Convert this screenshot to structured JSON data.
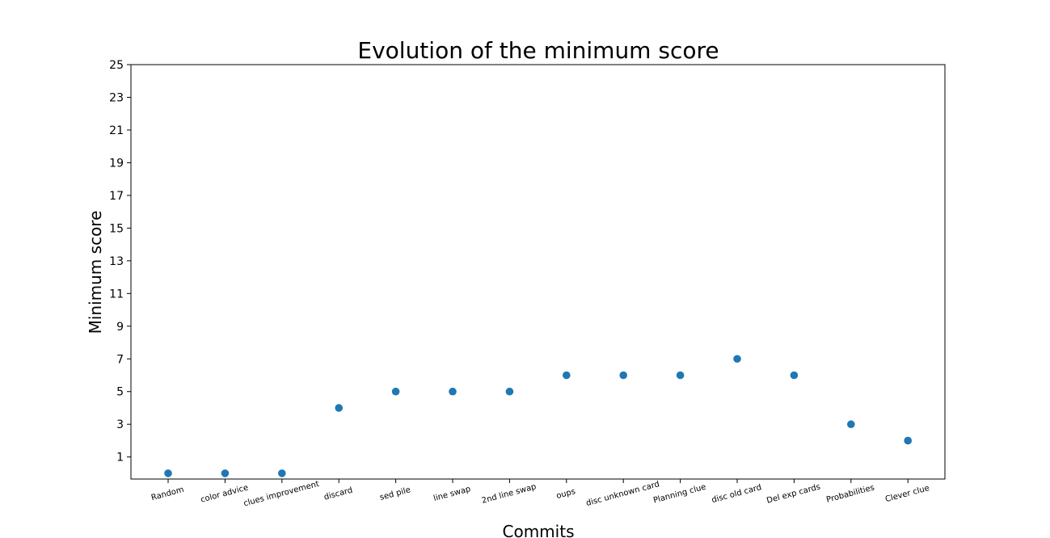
{
  "chart_data": {
    "type": "scatter",
    "title": "Evolution of the minimum score",
    "xlabel": "Commits",
    "ylabel": "Minimum score",
    "categories": [
      "Random",
      "color advice",
      "clues improvement",
      "discard",
      "sed pile",
      "line swap",
      "2nd line swap",
      "oups",
      "disc unknown card",
      "Planning clue",
      "disc old card",
      "Del exp cards",
      "Probabilities",
      "Clever clue"
    ],
    "values": [
      0,
      0,
      0,
      4,
      5,
      5,
      5,
      6,
      6,
      6,
      7,
      6,
      3,
      2
    ],
    "yticks": [
      1,
      3,
      5,
      7,
      9,
      11,
      13,
      15,
      17,
      19,
      21,
      23,
      25
    ],
    "ylim": [
      -0.35,
      25
    ],
    "grid": false,
    "marker_color": "#1f77b4"
  }
}
